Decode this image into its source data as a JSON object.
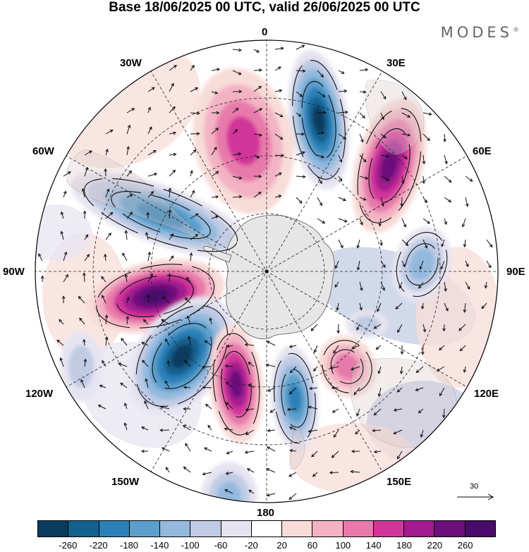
{
  "title": "Base 18/06/2025 00 UTC, valid 26/06/2025 00 UTC",
  "brand": "MODES",
  "brand_mark": "®",
  "longitude_labels": {
    "top": "0",
    "top_left": "30W",
    "top_right": "30E",
    "left_upper": "60W",
    "right_upper": "60E",
    "left": "90W",
    "right": "90E",
    "left_lower": "120W",
    "right_lower": "120E",
    "bottom_left": "150W",
    "bottom_right": "150E",
    "bottom": "180"
  },
  "vector_scale": "30",
  "colorbar": {
    "ticks": [
      "-260",
      "-220",
      "-180",
      "-140",
      "-100",
      "-60",
      "-20",
      "20",
      "60",
      "100",
      "140",
      "180",
      "220",
      "260"
    ],
    "colors": [
      "#0b3b5e",
      "#14618f",
      "#2c80b7",
      "#5b9fcc",
      "#93b9de",
      "#c0cbe4",
      "#e6e4f0",
      "#ffffff",
      "#f8dcd8",
      "#f3b3c4",
      "#e87aab",
      "#d2369a",
      "#a21b8f",
      "#6c0f7b",
      "#4a0b6a"
    ]
  },
  "anomaly_centres": [
    {
      "sign": "negative",
      "label": "-260"
    },
    {
      "sign": "positive",
      "label": "220"
    },
    {
      "sign": "negative",
      "label": "-220"
    },
    {
      "sign": "positive",
      "label": "260"
    },
    {
      "sign": "negative",
      "label": "-260"
    },
    {
      "sign": "positive",
      "label": "220"
    },
    {
      "sign": "negative",
      "label": "-180"
    },
    {
      "sign": "positive",
      "label": "100"
    },
    {
      "sign": "negative",
      "label": "-100"
    },
    {
      "sign": "positive",
      "label": "140"
    }
  ]
}
